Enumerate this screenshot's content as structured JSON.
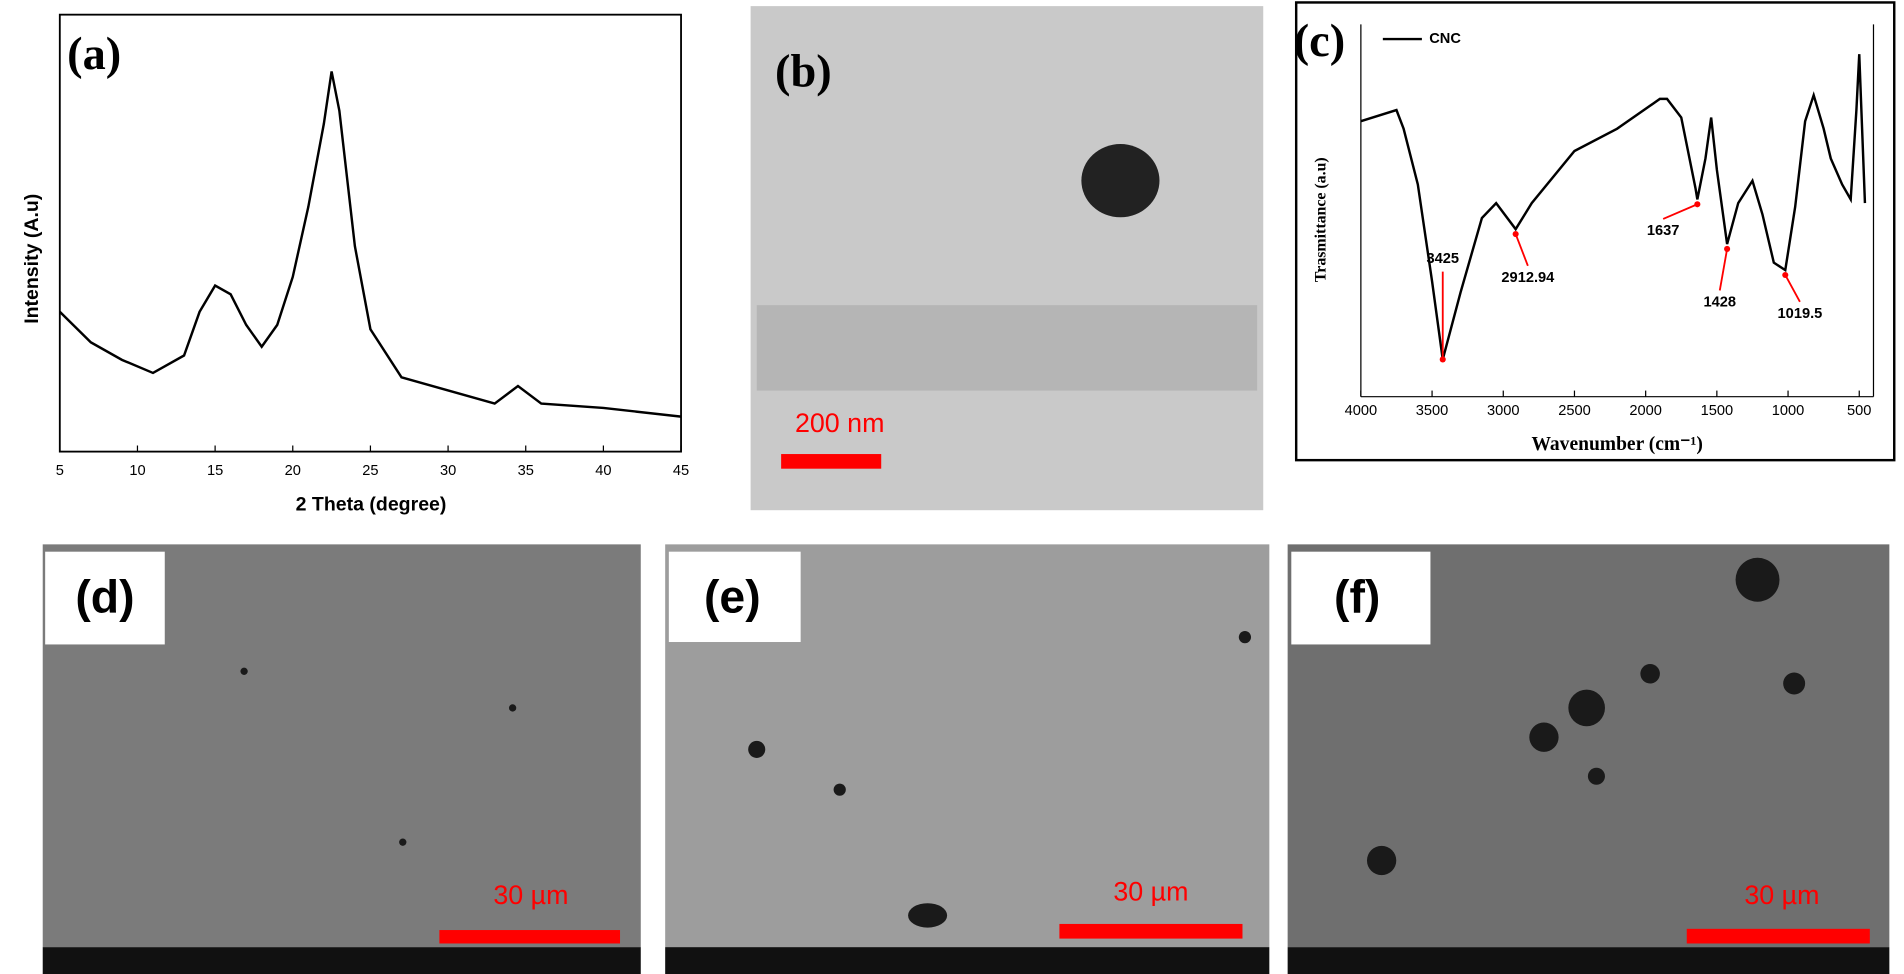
{
  "chart_data": [
    {
      "type": "line",
      "panel_label": "(a)",
      "x_label": "2 Theta (degree)",
      "y_label": "Intensity (A.u)",
      "x": [
        5,
        7,
        9,
        11,
        13,
        14,
        15,
        16,
        17,
        18,
        19,
        20,
        21,
        22,
        22.5,
        23,
        24,
        25,
        27,
        30,
        33,
        34.5,
        36,
        40,
        45
      ],
      "values": [
        32,
        25,
        21,
        18,
        22,
        32,
        38,
        36,
        29,
        24,
        29,
        40,
        56,
        75,
        87,
        78,
        47,
        28,
        17,
        14,
        11,
        15,
        11,
        10,
        8
      ],
      "color": "#000000",
      "xlim": [
        5,
        45
      ],
      "xticks": [
        5,
        10,
        15,
        20,
        25,
        30,
        35,
        40,
        45
      ],
      "ylim": [
        0,
        100
      ]
    },
    {
      "type": "line",
      "panel_label": "(c)",
      "x_label": "Wavenumber (cm⁻¹)",
      "y_label": "Trasmittance (a.u)",
      "x": [
        4000,
        3750,
        3700,
        3600,
        3500,
        3425,
        3300,
        3150,
        3050,
        2912.94,
        2800,
        2500,
        2200,
        1900,
        1850,
        1750,
        1650,
        1637,
        1580,
        1540,
        1500,
        1428,
        1350,
        1250,
        1180,
        1100,
        1019.5,
        950,
        880,
        820,
        750,
        700,
        620,
        560,
        520,
        500,
        460
      ],
      "series": [
        {
          "name": "CNC",
          "color": "#000000",
          "values": [
            74,
            77,
            72,
            57,
            31,
            10,
            28,
            48,
            52,
            45,
            52,
            66,
            72,
            80,
            80,
            75,
            56,
            53,
            64,
            75,
            61,
            41,
            52,
            58,
            49,
            36,
            34,
            51,
            74,
            81,
            72,
            64,
            57,
            53,
            77,
            92,
            52
          ]
        }
      ],
      "xlim": [
        4000,
        400
      ],
      "xticks": [
        4000,
        3500,
        3000,
        2500,
        2000,
        1500,
        1000,
        500
      ],
      "ylim": [
        0,
        100
      ],
      "peaks": [
        3425,
        2912.94,
        1637,
        1428,
        1019.5
      ],
      "peak_color": "#ff0000"
    }
  ],
  "images": [
    {
      "panel_label": "(b)",
      "scale_bar_label": "200 nm"
    },
    {
      "panel_label": "(d)",
      "scale_bar_label": "30 µm"
    },
    {
      "panel_label": "(e)",
      "scale_bar_label": "30 µm"
    },
    {
      "panel_label": "(f)",
      "scale_bar_label": "30 µm"
    }
  ]
}
